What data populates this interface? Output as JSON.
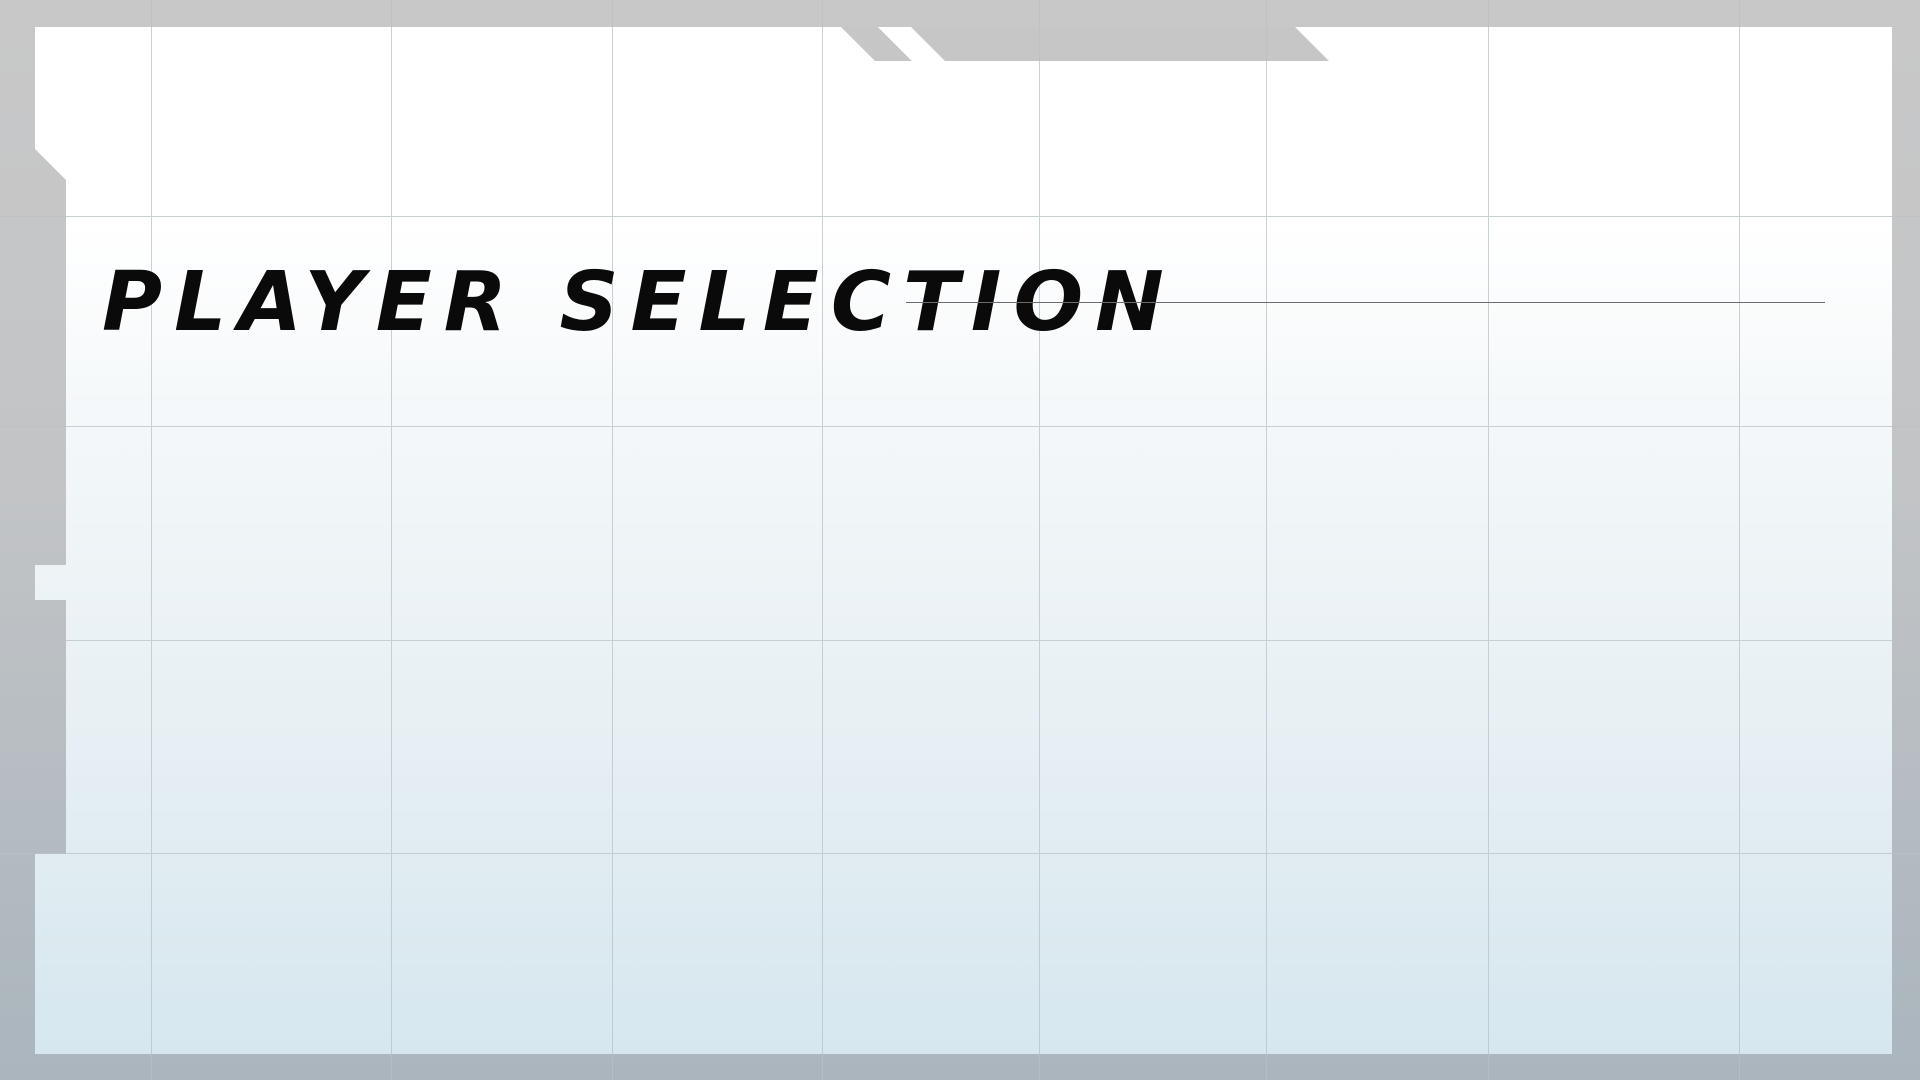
{
  "screen": {
    "title": "PLAYER SELECTION"
  },
  "colors": {
    "frame": "#c6c6c6",
    "panel_top": "#ffffff",
    "panel_bottom": "#d6e7ef",
    "grid_line": "#b9c2c8",
    "title_text": "#0a0a0a",
    "title_rule": "#6a6d70"
  }
}
